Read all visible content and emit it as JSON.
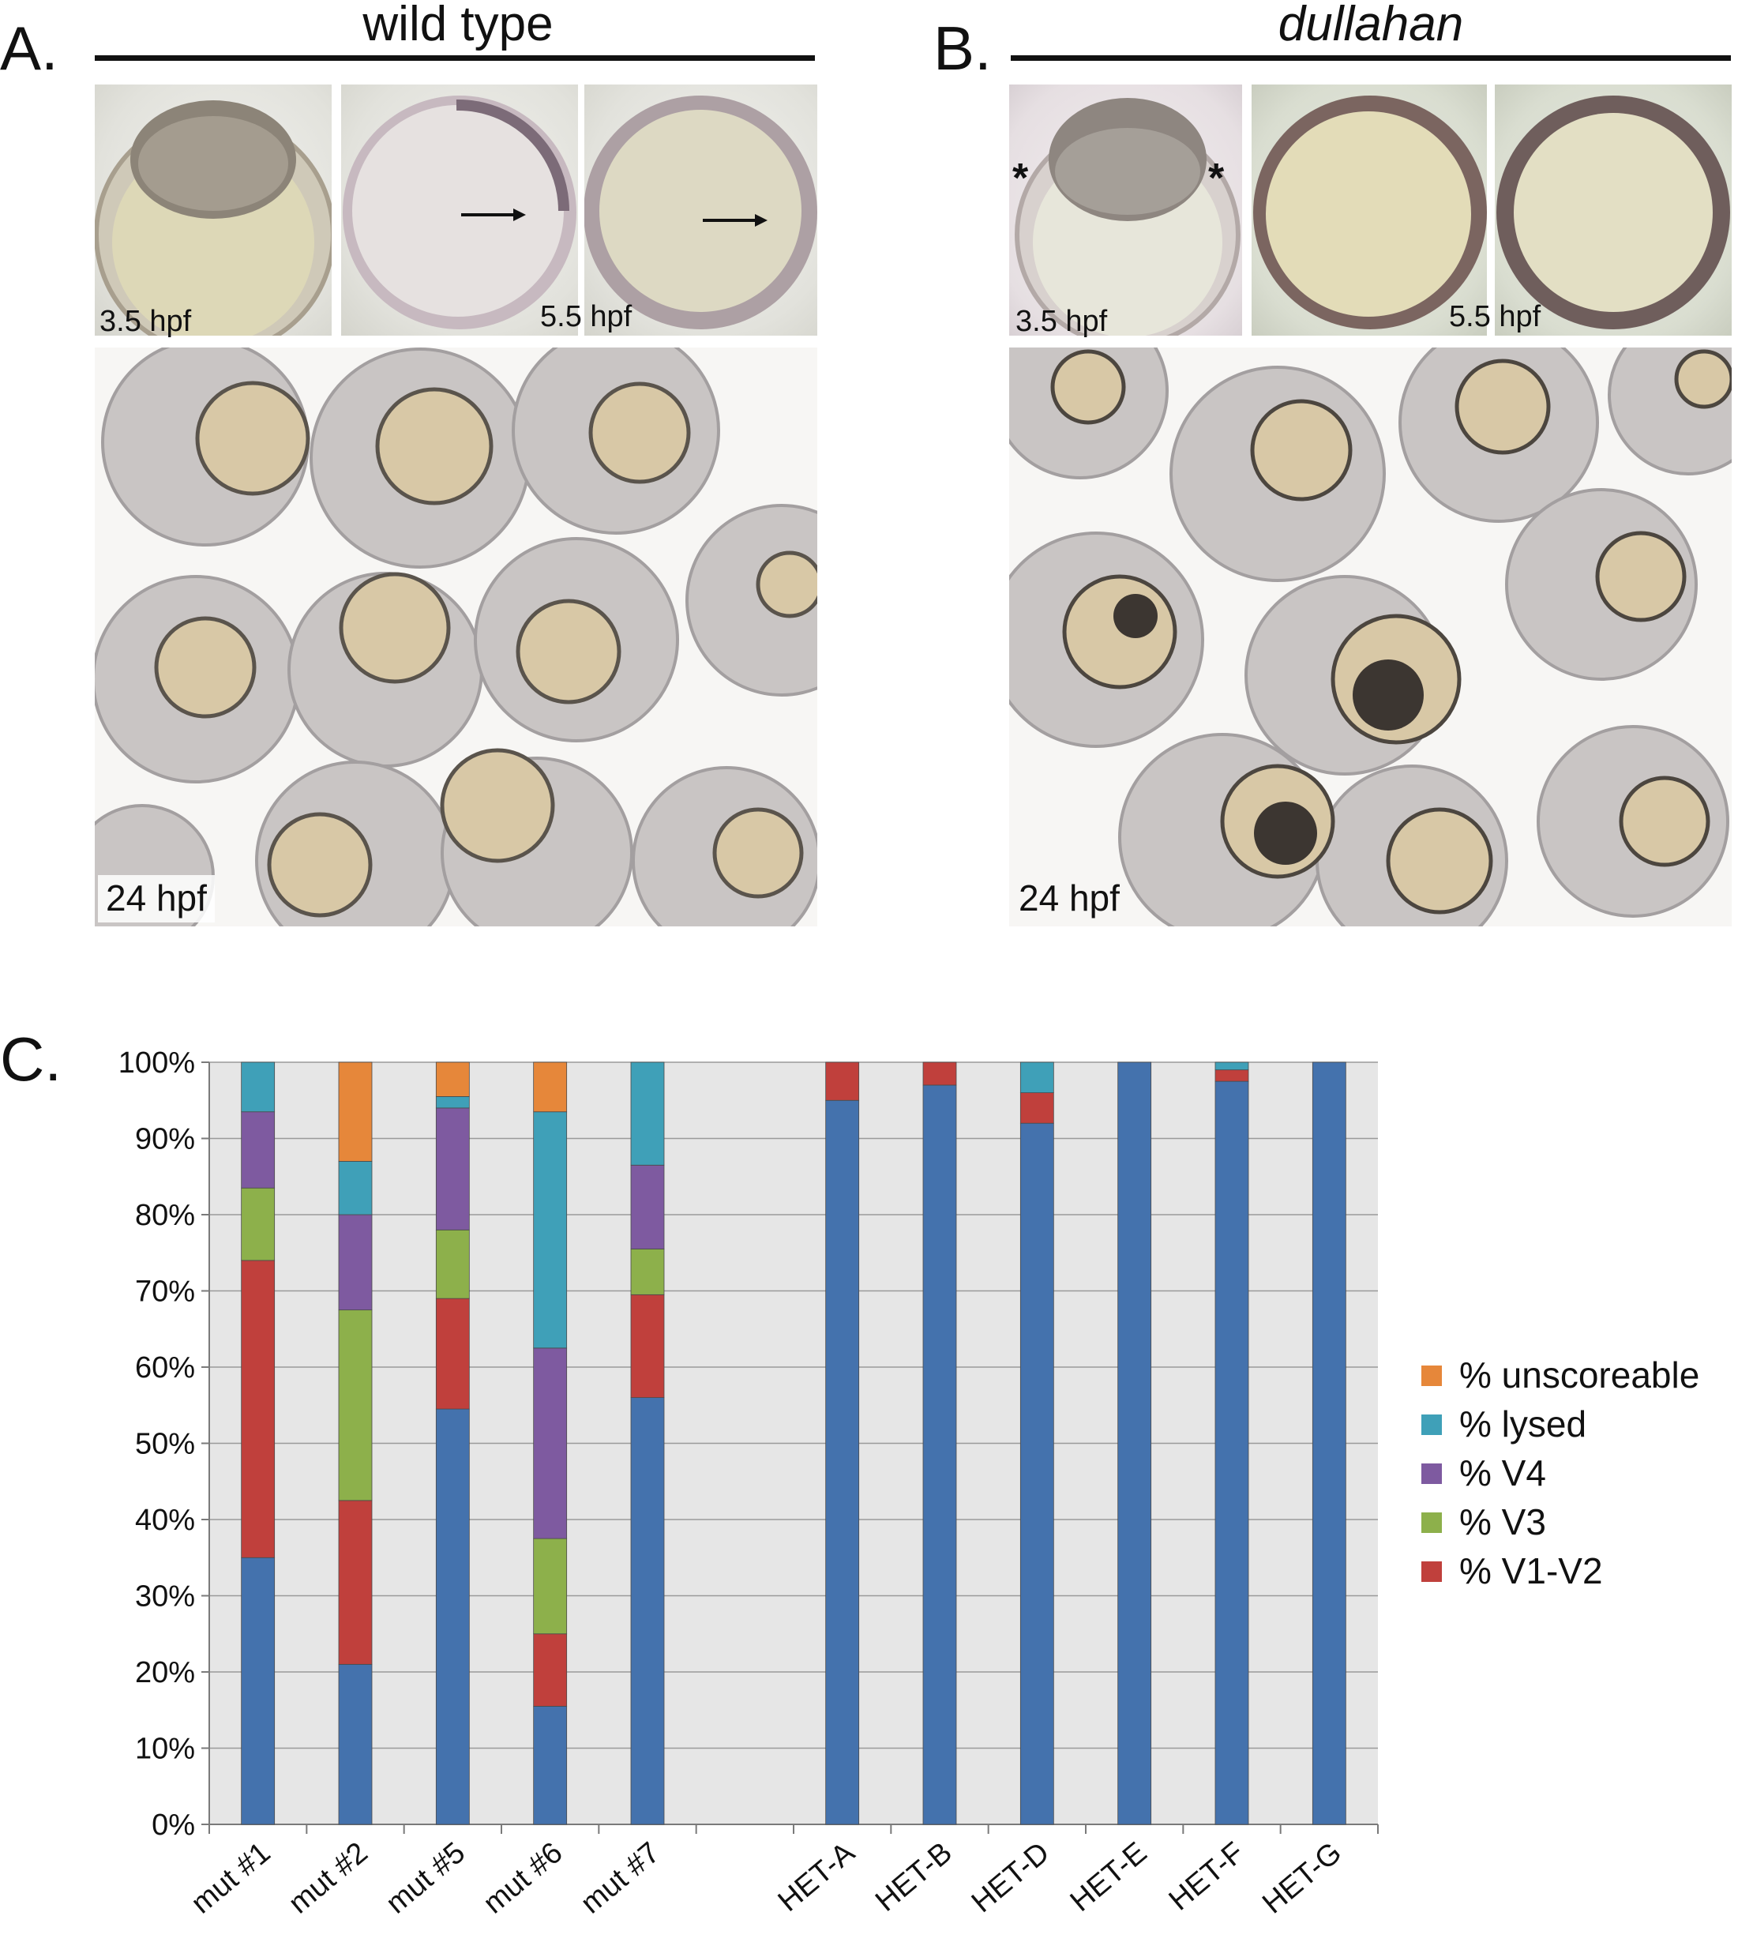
{
  "panel_a": {
    "letter": "A.",
    "title": "wild type",
    "label_early": "3.5 hpf",
    "label_mid": "5.5 hpf",
    "label_late": "24 hpf"
  },
  "panel_b": {
    "letter": "B.",
    "title": "dullahan",
    "label_early": "3.5 hpf",
    "label_mid": "5.5 hpf",
    "label_late": "24 hpf",
    "asterisk": "*"
  },
  "panel_c": {
    "letter": "C."
  },
  "colors": {
    "unscoreable": "#E6873A",
    "lysed": "#3FA0B8",
    "V4": "#7E5AA0",
    "V3": "#8DB04B",
    "V1-V2": "#C0403C",
    "normal": "#4472AD",
    "plot_bg": "#E6E6E6",
    "grid": "#9A9A9A"
  },
  "chart_data": {
    "type": "bar",
    "stacked": true,
    "categories": [
      "mut #1",
      "mut #2",
      "mut #5",
      "mut #6",
      "mut #7",
      "",
      "HET-A",
      "HET-B",
      "HET-D",
      "HET-E",
      "HET-F",
      "HET-G"
    ],
    "ylim": [
      0,
      100
    ],
    "yticks": [
      "0%",
      "10%",
      "20%",
      "30%",
      "40%",
      "50%",
      "60%",
      "70%",
      "80%",
      "90%",
      "100%"
    ],
    "grid": true,
    "legend_position": "right",
    "series": [
      {
        "key": "normal",
        "values": [
          35,
          21,
          54.5,
          15.5,
          56,
          null,
          95,
          97,
          92,
          100,
          97.5,
          100
        ]
      },
      {
        "key": "V1-V2",
        "name": "% V1-V2",
        "values": [
          39,
          21.5,
          14.5,
          9.5,
          13.5,
          null,
          5,
          3,
          4,
          0,
          1.5,
          0
        ]
      },
      {
        "key": "V3",
        "name": "% V3",
        "values": [
          9.5,
          25,
          9,
          12.5,
          6,
          null,
          0,
          0,
          0,
          0,
          0,
          0
        ]
      },
      {
        "key": "V4",
        "name": "% V4",
        "values": [
          10,
          12.5,
          16,
          25,
          11,
          null,
          0,
          0,
          0,
          0,
          0,
          0
        ]
      },
      {
        "key": "lysed",
        "name": "% lysed",
        "values": [
          6.5,
          7,
          1.5,
          31,
          13.5,
          null,
          0,
          0,
          4,
          0,
          1,
          0
        ]
      },
      {
        "key": "unscoreable",
        "name": "% unscoreable",
        "values": [
          0,
          13,
          4.5,
          6.5,
          0,
          null,
          0,
          0,
          0,
          0,
          0,
          0
        ]
      }
    ],
    "legend_order": [
      "unscoreable",
      "lysed",
      "V4",
      "V3",
      "V1-V2"
    ]
  }
}
